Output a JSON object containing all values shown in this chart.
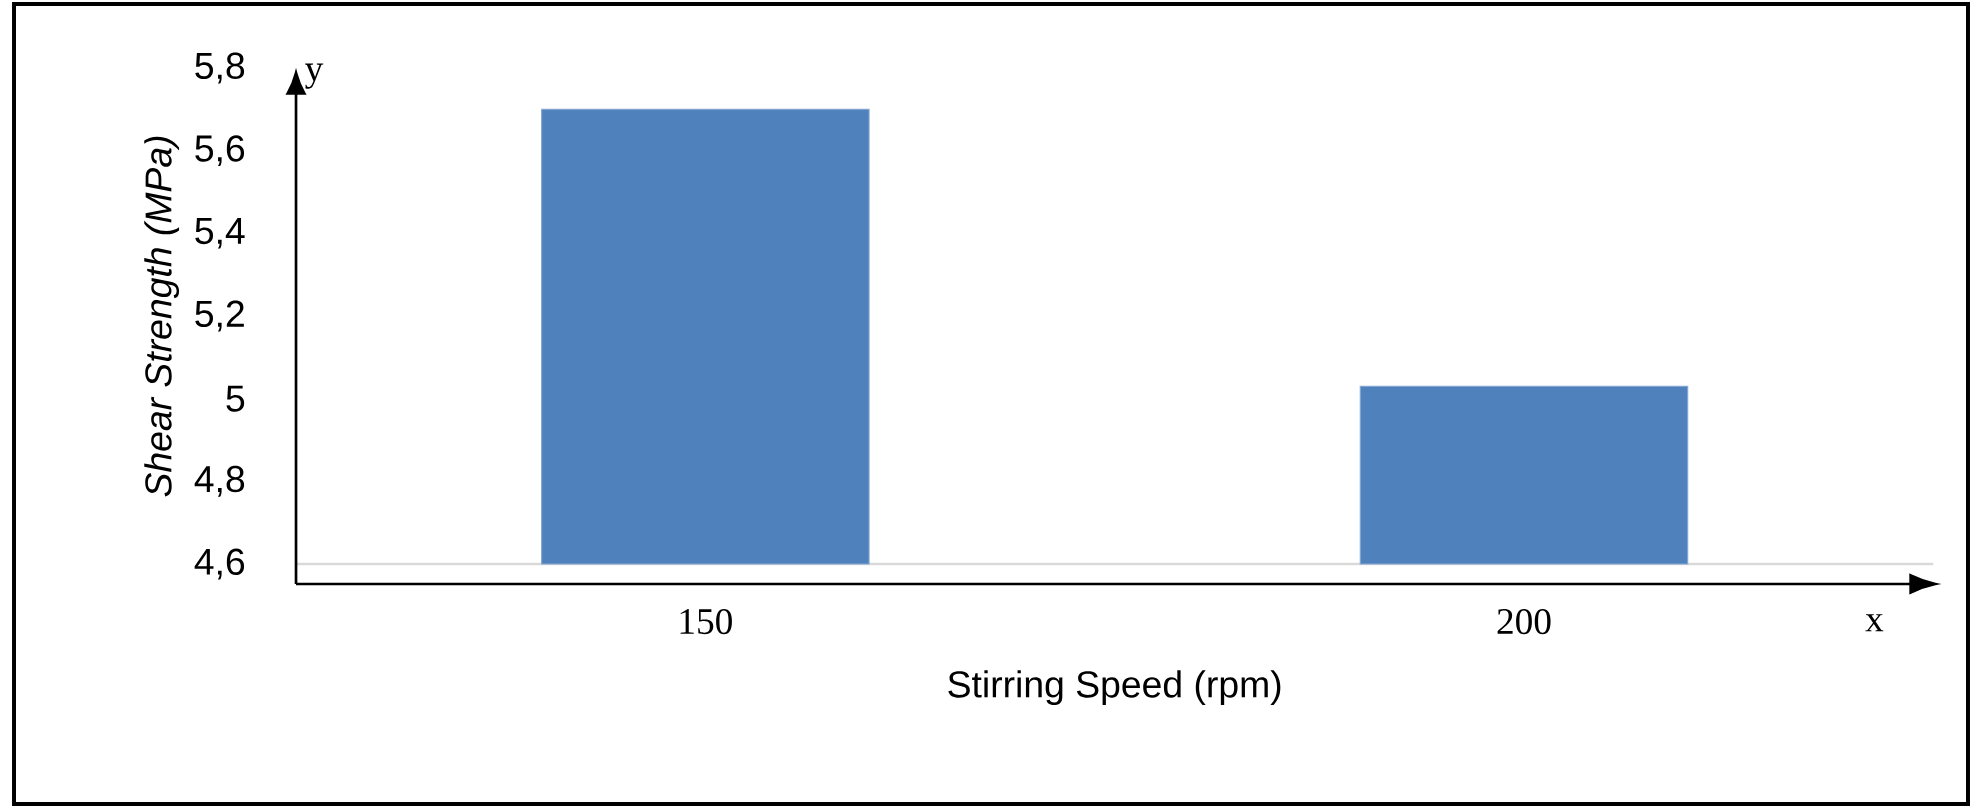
{
  "chart_data": {
    "type": "bar",
    "xlabel": "Stirring Speed (rpm)",
    "ylabel": "Shear Strength (MPa)",
    "categories": [
      "150",
      "200"
    ],
    "values": [
      5.7,
      5.03
    ],
    "color": "#4f81bd",
    "ylim": [
      4.6,
      5.8
    ],
    "yticks": [
      {
        "value": 4.6,
        "label": "4,6"
      },
      {
        "value": 4.8,
        "label": "4,8"
      },
      {
        "value": 5,
        "label": "5"
      },
      {
        "value": 5.2,
        "label": "5,2"
      },
      {
        "value": 5.4,
        "label": "5,4"
      },
      {
        "value": 5.6,
        "label": "5,6"
      },
      {
        "value": 5.8,
        "label": "5,8"
      }
    ],
    "annotations": [
      "y",
      "x"
    ]
  }
}
